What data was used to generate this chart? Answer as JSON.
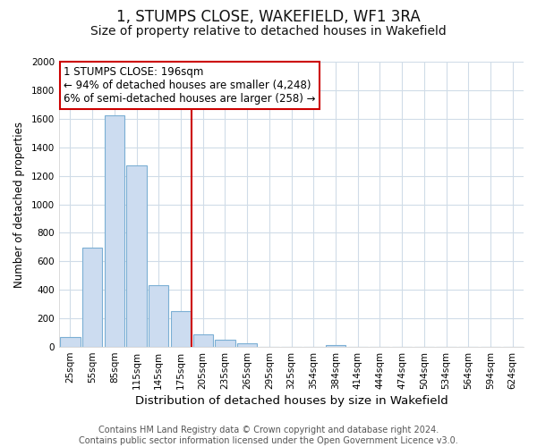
{
  "title": "1, STUMPS CLOSE, WAKEFIELD, WF1 3RA",
  "subtitle": "Size of property relative to detached houses in Wakefield",
  "xlabel": "Distribution of detached houses by size in Wakefield",
  "ylabel": "Number of detached properties",
  "bar_labels": [
    "25sqm",
    "55sqm",
    "85sqm",
    "115sqm",
    "145sqm",
    "175sqm",
    "205sqm",
    "235sqm",
    "265sqm",
    "295sqm",
    "325sqm",
    "354sqm",
    "384sqm",
    "414sqm",
    "444sqm",
    "474sqm",
    "504sqm",
    "534sqm",
    "564sqm",
    "594sqm",
    "624sqm"
  ],
  "bar_values": [
    68,
    695,
    1625,
    1275,
    432,
    253,
    90,
    52,
    25,
    0,
    0,
    0,
    15,
    0,
    0,
    0,
    0,
    0,
    0,
    0,
    0
  ],
  "bar_color": "#ccdcf0",
  "bar_edge_color": "#7bafd4",
  "vline_x": 6.0,
  "vline_color": "#cc0000",
  "annotation_line1": "1 STUMPS CLOSE: 196sqm",
  "annotation_line2": "← 94% of detached houses are smaller (4,248)",
  "annotation_line3": "6% of semi-detached houses are larger (258) →",
  "annotation_box_color": "#ffffff",
  "annotation_box_edge": "#cc0000",
  "ylim": [
    0,
    2000
  ],
  "yticks": [
    0,
    200,
    400,
    600,
    800,
    1000,
    1200,
    1400,
    1600,
    1800,
    2000
  ],
  "footer_text": "Contains HM Land Registry data © Crown copyright and database right 2024.\nContains public sector information licensed under the Open Government Licence v3.0.",
  "background_color": "#ffffff",
  "plot_background_color": "#ffffff",
  "grid_color": "#d0dce8",
  "title_fontsize": 12,
  "subtitle_fontsize": 10,
  "xlabel_fontsize": 9.5,
  "ylabel_fontsize": 8.5,
  "tick_fontsize": 7.5,
  "footer_fontsize": 7,
  "annotation_fontsize": 8.5
}
